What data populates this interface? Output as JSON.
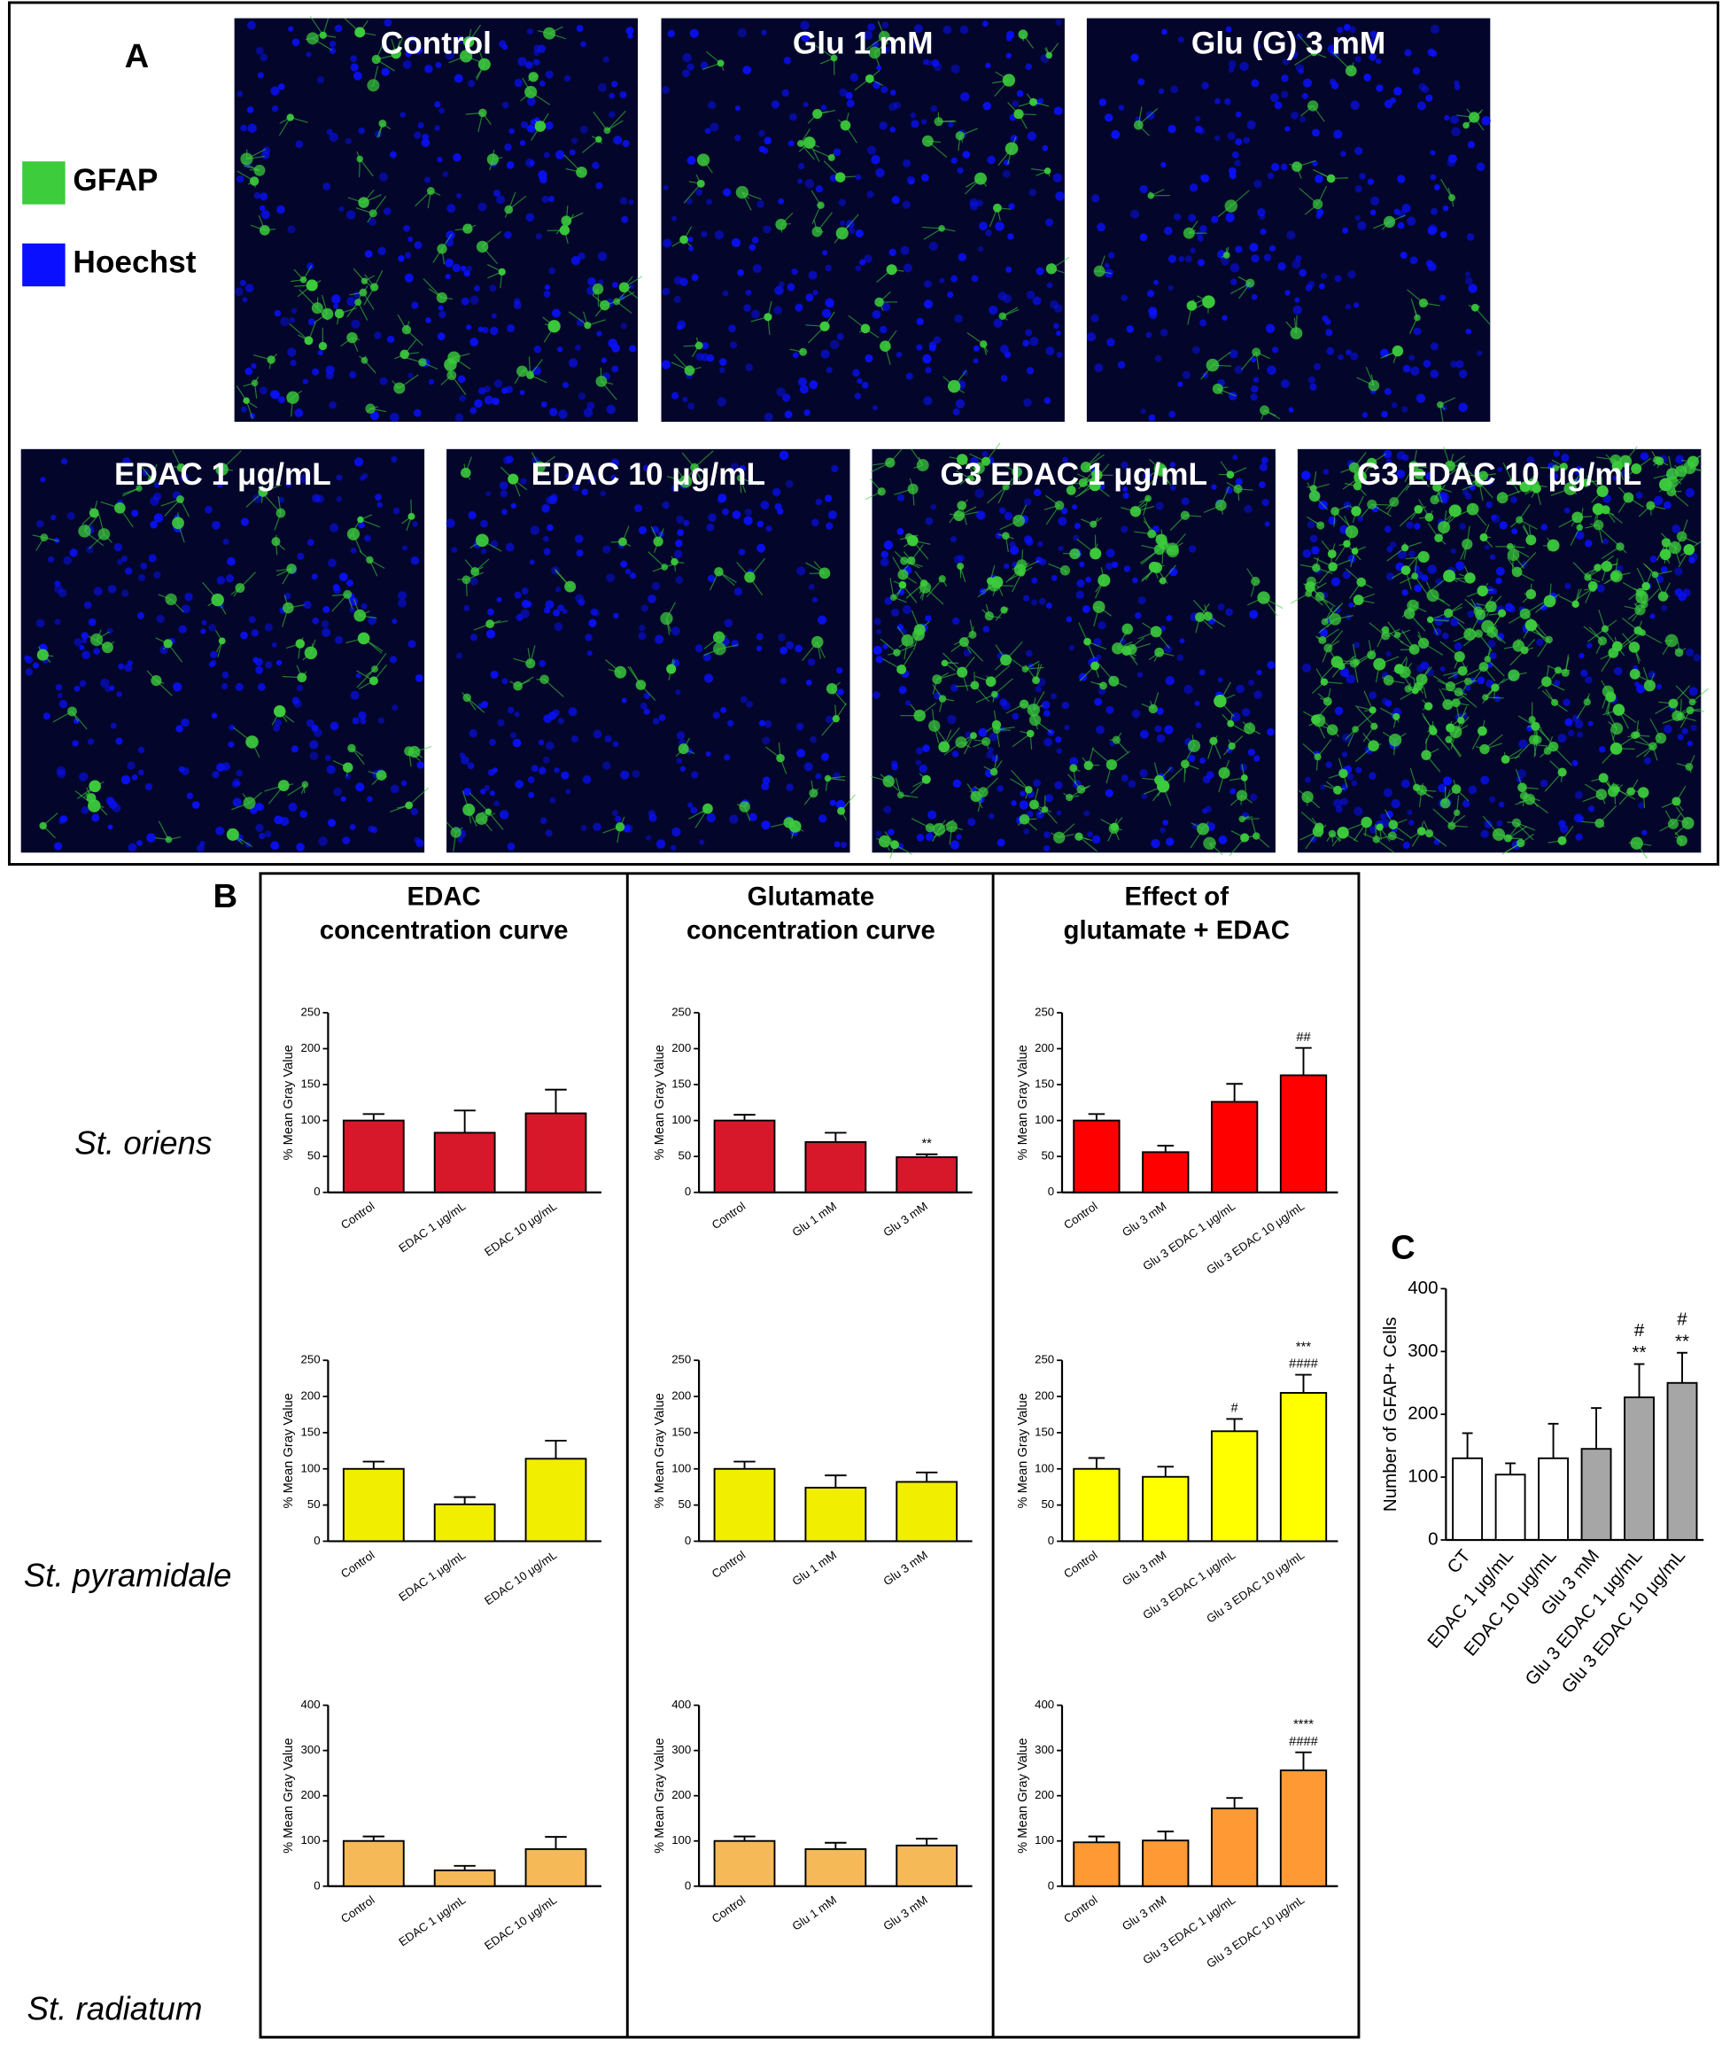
{
  "panel_a": {
    "label": "A",
    "legend": [
      {
        "name": "GFAP",
        "color": "#3ccc3c"
      },
      {
        "name": "Hoechst",
        "color": "#0a10ff"
      }
    ],
    "images": [
      "Control",
      "Glu 1 mM",
      "Glu (G) 3 mM",
      "EDAC 1 μg/mL",
      "EDAC 10 μg/mL",
      "G3 EDAC 1 μg/mL",
      "G3 EDAC 10 μg/mL"
    ]
  },
  "panel_b": {
    "label": "B",
    "columns": [
      [
        "EDAC",
        "concentration curve"
      ],
      [
        "Glutamate",
        "concentration curve"
      ],
      [
        "Effect of",
        "glutamate + EDAC"
      ]
    ],
    "rows": [
      "St. oriens",
      "St. pyramidale",
      "St. radiatum"
    ]
  },
  "panel_c": {
    "label": "C"
  },
  "chart_data": [
    {
      "type": "bar",
      "ylabel": "% Mean Gray Value",
      "categories": [
        "Control",
        "EDAC 1 μg/mL",
        "EDAC 10 μg/mL"
      ],
      "values": [
        100,
        83,
        110
      ],
      "errors": [
        9,
        31,
        33
      ],
      "color": "#d7182a",
      "ylim": [
        0,
        250
      ],
      "yticks": [
        0,
        50,
        100,
        150,
        200,
        250
      ]
    },
    {
      "type": "bar",
      "ylabel": "% Mean Gray Value",
      "categories": [
        "Control",
        "Glu 1 mM",
        "Glu 3 mM"
      ],
      "values": [
        100,
        70,
        49
      ],
      "errors": [
        8,
        13,
        4
      ],
      "annotations": [
        null,
        null,
        [
          "**"
        ]
      ],
      "color": "#d7182a",
      "ylim": [
        0,
        250
      ],
      "yticks": [
        0,
        50,
        100,
        150,
        200,
        250
      ]
    },
    {
      "type": "bar",
      "ylabel": "% Mean Gray Value",
      "categories": [
        "Control",
        "Glu 3 mM",
        "Glu 3 EDAC 1 μg/mL",
        "Glu 3 EDAC 10 μg/mL"
      ],
      "values": [
        100,
        56,
        126,
        163
      ],
      "errors": [
        9,
        9,
        25,
        38
      ],
      "annotations": [
        null,
        null,
        null,
        [
          "##"
        ]
      ],
      "color": "#ff0000",
      "ylim": [
        0,
        250
      ],
      "yticks": [
        0,
        50,
        100,
        150,
        200,
        250
      ]
    },
    {
      "type": "bar",
      "ylabel": "% Mean Gray Value",
      "categories": [
        "Control",
        "EDAC 1 μg/mL",
        "EDAC 10 μg/mL"
      ],
      "values": [
        100,
        51,
        114
      ],
      "errors": [
        10,
        10,
        25
      ],
      "color": "#f2ee00",
      "ylim": [
        0,
        250
      ],
      "yticks": [
        0,
        50,
        100,
        150,
        200,
        250
      ]
    },
    {
      "type": "bar",
      "ylabel": "% Mean Gray Value",
      "categories": [
        "Control",
        "Glu 1 mM",
        "Glu 3 mM"
      ],
      "values": [
        100,
        74,
        82
      ],
      "errors": [
        10,
        17,
        13
      ],
      "color": "#f2ee00",
      "ylim": [
        0,
        250
      ],
      "yticks": [
        0,
        50,
        100,
        150,
        200,
        250
      ]
    },
    {
      "type": "bar",
      "ylabel": "% Mean Gray Value",
      "categories": [
        "Control",
        "Glu 3 mM",
        "Glu 3 EDAC 1 μg/mL",
        "Glu 3 EDAC 10 μg/mL"
      ],
      "values": [
        100,
        89,
        152,
        205
      ],
      "errors": [
        15,
        14,
        17,
        25
      ],
      "annotations": [
        null,
        null,
        [
          "#"
        ],
        [
          "***",
          "####"
        ]
      ],
      "color": "#ffff00",
      "ylim": [
        0,
        250
      ],
      "yticks": [
        0,
        50,
        100,
        150,
        200,
        250
      ]
    },
    {
      "type": "bar",
      "ylabel": "% Mean Gray Value",
      "categories": [
        "Control",
        "EDAC 1 μg/mL",
        "EDAC 10 μg/mL"
      ],
      "values": [
        100,
        35,
        82
      ],
      "errors": [
        10,
        10,
        27
      ],
      "color": "#f5b957",
      "ylim": [
        0,
        400
      ],
      "yticks": [
        0,
        100,
        200,
        300,
        400
      ]
    },
    {
      "type": "bar",
      "ylabel": "% Mean Gray Value",
      "categories": [
        "Control",
        "Glu 1 mM",
        "Glu 3 mM"
      ],
      "values": [
        100,
        82,
        90
      ],
      "errors": [
        10,
        14,
        15
      ],
      "color": "#f5b957",
      "ylim": [
        0,
        400
      ],
      "yticks": [
        0,
        100,
        200,
        300,
        400
      ]
    },
    {
      "type": "bar",
      "ylabel": "% Mean Gray Value",
      "categories": [
        "Control",
        "Glu 3 mM",
        "Glu 3 EDAC 1 μg/mL",
        "Glu 3 EDAC 10 μg/mL"
      ],
      "values": [
        97,
        101,
        172,
        256
      ],
      "errors": [
        13,
        20,
        23,
        40
      ],
      "annotations": [
        null,
        null,
        null,
        [
          "****",
          "####"
        ]
      ],
      "color": "#ff9933",
      "ylim": [
        0,
        400
      ],
      "yticks": [
        0,
        100,
        200,
        300,
        400
      ]
    },
    {
      "type": "bar",
      "ylabel": "Number of GFAP+ Cells",
      "categories": [
        "CT",
        "EDAC 1 μg/mL",
        "EDAC 10 μg/mL",
        "Glu 3 mM",
        "Glu 3 EDAC 1 μg/mL",
        "Glu 3 EDAC 10 μg/mL"
      ],
      "values": [
        130,
        104,
        130,
        145,
        227,
        250
      ],
      "errors": [
        40,
        18,
        55,
        65,
        53,
        48
      ],
      "annotations": [
        null,
        null,
        null,
        null,
        [
          "#",
          "**"
        ],
        [
          "#",
          "**"
        ]
      ],
      "colors": [
        "#ffffff",
        "#ffffff",
        "#ffffff",
        "#a6a6a6",
        "#a6a6a6",
        "#a6a6a6"
      ],
      "ylim": [
        0,
        400
      ],
      "yticks": [
        0,
        100,
        200,
        300,
        400
      ]
    }
  ]
}
